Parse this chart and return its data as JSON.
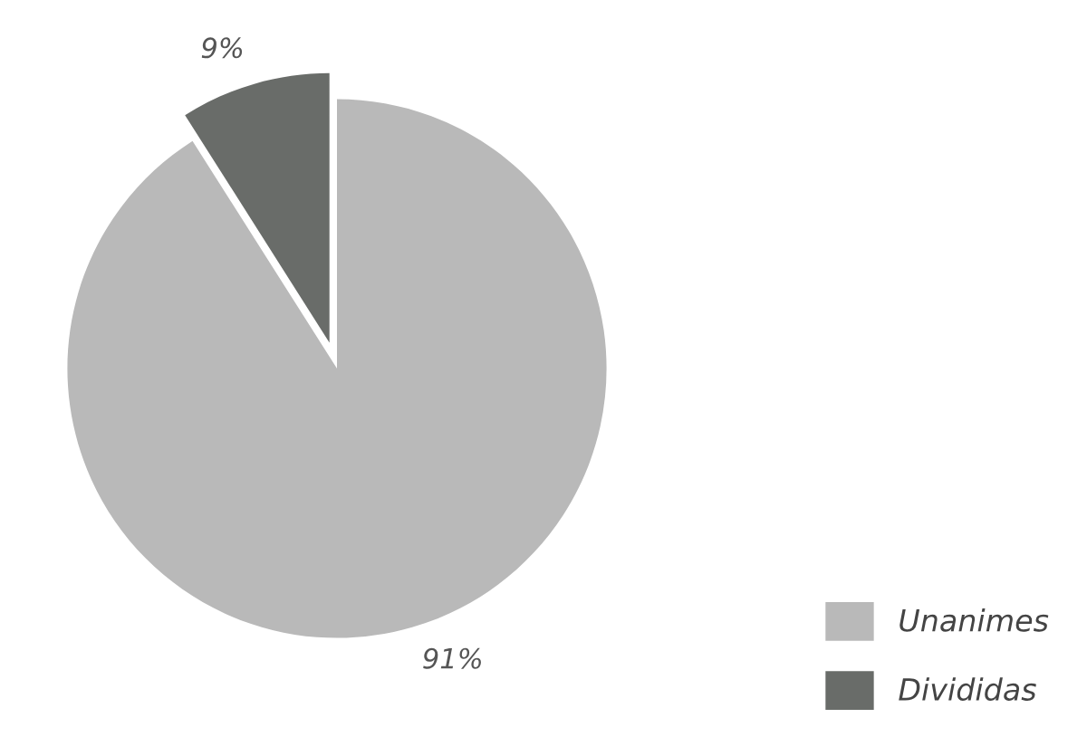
{
  "chart_data": {
    "type": "pie",
    "categories": [
      "Unanimes",
      "Divididas"
    ],
    "values": [
      91,
      9
    ],
    "colors": [
      "#b9b9b9",
      "#696c69"
    ],
    "value_labels": [
      "91%",
      "9%"
    ],
    "legend": "bottom right"
  }
}
